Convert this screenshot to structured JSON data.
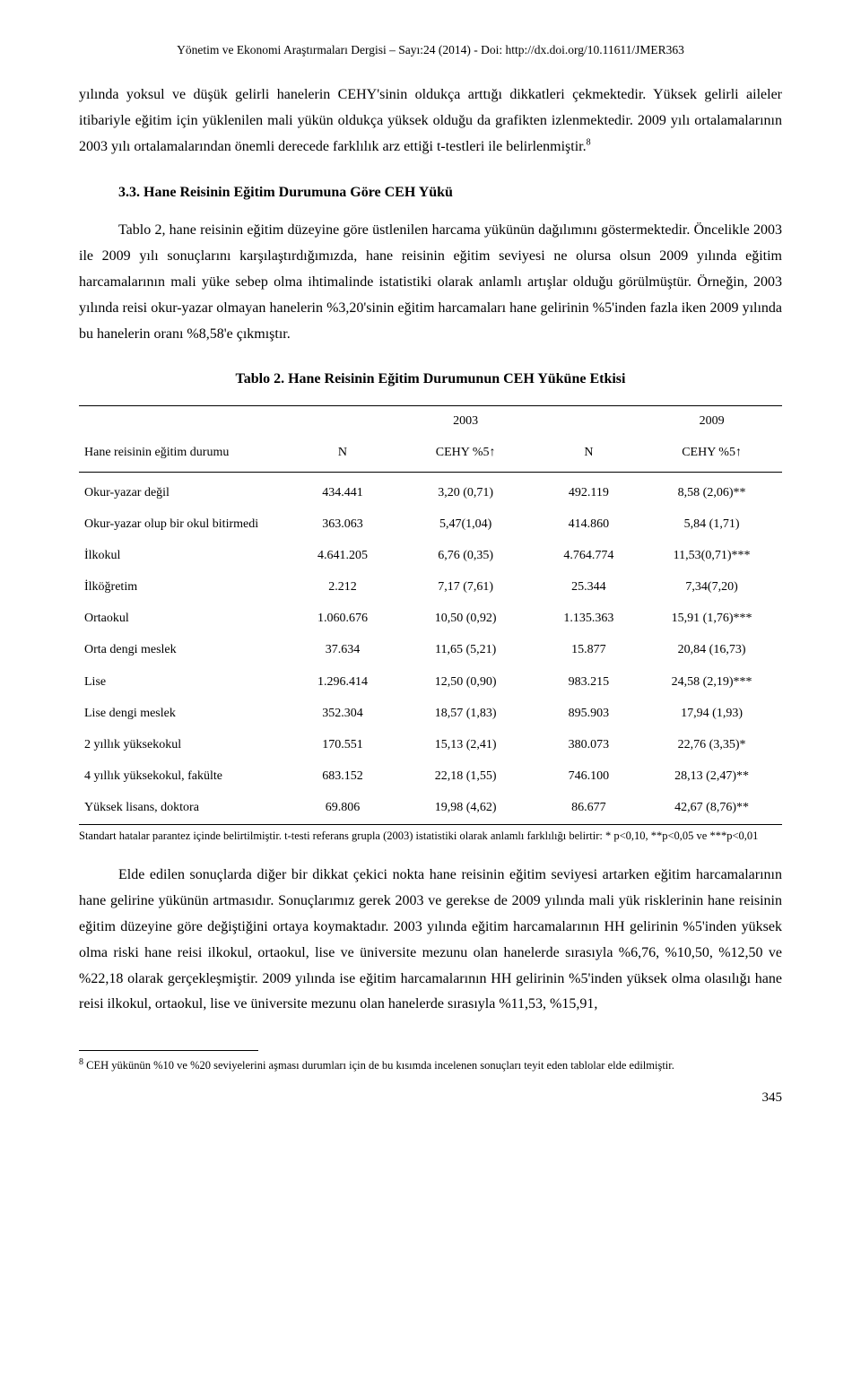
{
  "header": "Yönetim ve Ekonomi Araştırmaları Dergisi – Sayı:24 (2014) - Doi: http://dx.doi.org/10.11611/JMER363",
  "para1": "yılında yoksul ve düşük gelirli hanelerin CEHY'sinin oldukça arttığı dikkatleri çekmektedir. Yüksek gelirli aileler itibariyle eğitim için yüklenilen mali yükün oldukça yüksek olduğu da grafikten izlenmektedir. 2009 yılı ortalamalarının 2003 yılı ortalamalarından önemli derecede farklılık arz ettiği t-testleri ile belirlenmiştir.",
  "para1_supnum": "8",
  "h3": "3.3. Hane Reisinin Eğitim Durumuna Göre CEH Yükü",
  "para2": "Tablo 2, hane reisinin eğitim düzeyine göre üstlenilen harcama yükünün dağılımını göstermektedir. Öncelikle 2003 ile 2009 yılı sonuçlarını karşılaştırdığımızda, hane reisinin eğitim seviyesi ne olursa olsun 2009 yılında eğitim harcamalarının mali yüke sebep olma ihtimalinde istatistiki olarak anlamlı artışlar olduğu görülmüştür. Örneğin, 2003 yılında reisi okur-yazar olmayan hanelerin %3,20'sinin eğitim harcamaları hane gelirinin %5'inden fazla iken 2009 yılında bu hanelerin oranı %8,58'e çıkmıştır.",
  "table": {
    "title": "Tablo 2. Hane Reisinin Eğitim Durumunun CEH Yüküne Etkisi",
    "year_left": "2003",
    "year_right": "2009",
    "row_header_label": "Hane reisinin eğitim durumu",
    "col_N": "N",
    "col_cehy": "CEHY %5↑",
    "rows": [
      {
        "label": "Okur-yazar değil",
        "n1": "434.441",
        "c1": "3,20 (0,71)",
        "n2": "492.119",
        "c2": "8,58 (2,06)**"
      },
      {
        "label": "Okur-yazar olup bir okul bitirmedi",
        "n1": "363.063",
        "c1": "5,47(1,04)",
        "n2": "414.860",
        "c2": "5,84 (1,71)"
      },
      {
        "label": "İlkokul",
        "n1": "4.641.205",
        "c1": "6,76 (0,35)",
        "n2": "4.764.774",
        "c2": "11,53(0,71)***"
      },
      {
        "label": "İlköğretim",
        "n1": "2.212",
        "c1": "7,17 (7,61)",
        "n2": "25.344",
        "c2": "7,34(7,20)"
      },
      {
        "label": "Ortaokul",
        "n1": "1.060.676",
        "c1": "10,50 (0,92)",
        "n2": "1.135.363",
        "c2": "15,91 (1,76)***"
      },
      {
        "label": "Orta dengi meslek",
        "n1": "37.634",
        "c1": "11,65 (5,21)",
        "n2": "15.877",
        "c2": "20,84 (16,73)"
      },
      {
        "label": "Lise",
        "n1": "1.296.414",
        "c1": "12,50 (0,90)",
        "n2": "983.215",
        "c2": "24,58 (2,19)***"
      },
      {
        "label": "Lise dengi meslek",
        "n1": "352.304",
        "c1": "18,57 (1,83)",
        "n2": "895.903",
        "c2": "17,94 (1,93)"
      },
      {
        "label": "2 yıllık yüksekokul",
        "n1": "170.551",
        "c1": "15,13 (2,41)",
        "n2": "380.073",
        "c2": "22,76 (3,35)*"
      },
      {
        "label": "4 yıllık yüksekokul, fakülte",
        "n1": "683.152",
        "c1": "22,18 (1,55)",
        "n2": "746.100",
        "c2": "28,13 (2,47)**"
      },
      {
        "label": "Yüksek lisans, doktora",
        "n1": "69.806",
        "c1": "19,98 (4,62)",
        "n2": "86.677",
        "c2": "42,67 (8,76)**"
      }
    ],
    "note": "Standart hatalar parantez içinde belirtilmiştir. t-testi referans grupla (2003) istatistiki olarak anlamlı farklılığı belirtir: * p<0,10, **p<0,05 ve ***p<0,01",
    "col_widths_pct": [
      30,
      15,
      20,
      15,
      20
    ],
    "font_size_pt": 14,
    "border_color": "#000000"
  },
  "para3": "Elde edilen sonuçlarda diğer bir dikkat çekici nokta hane reisinin eğitim seviyesi artarken eğitim harcamalarının hane gelirine yükünün artmasıdır. Sonuçlarımız gerek 2003 ve gerekse de 2009 yılında mali yük risklerinin hane reisinin eğitim düzeyine göre değiştiğini ortaya koymaktadır. 2003 yılında eğitim harcamalarının HH gelirinin %5'inden yüksek olma riski hane reisi ilkokul, ortaokul, lise ve üniversite mezunu olan hanelerde sırasıyla %6,76, %10,50, %12,50 ve %22,18 olarak gerçekleşmiştir. 2009 yılında ise eğitim harcamalarının HH gelirinin %5'inden yüksek olma olasılığı hane reisi ilkokul, ortaokul, lise ve üniversite mezunu olan hanelerde sırasıyla %11,53, %15,91,",
  "footnote_num": "8",
  "footnote": " CEH yükünün %10 ve %20 seviyelerini aşması durumları için de bu kısımda incelenen sonuçları teyit eden tablolar elde edilmiştir.",
  "page_number": "345"
}
